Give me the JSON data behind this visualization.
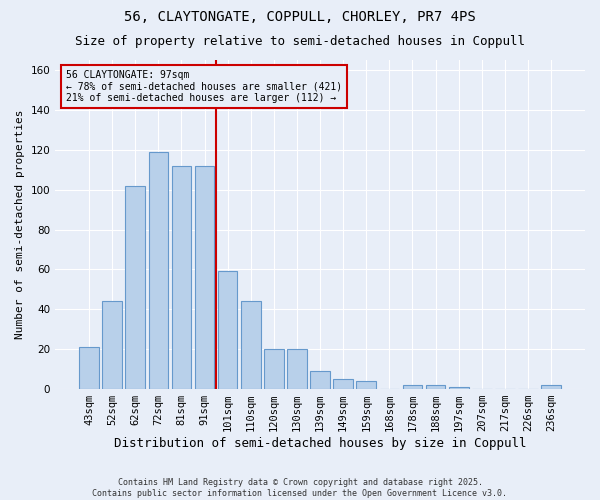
{
  "title1": "56, CLAYTONGATE, COPPULL, CHORLEY, PR7 4PS",
  "title2": "Size of property relative to semi-detached houses in Coppull",
  "xlabel": "Distribution of semi-detached houses by size in Coppull",
  "ylabel": "Number of semi-detached properties",
  "bar_labels": [
    "43sqm",
    "52sqm",
    "62sqm",
    "72sqm",
    "81sqm",
    "91sqm",
    "101sqm",
    "110sqm",
    "120sqm",
    "130sqm",
    "139sqm",
    "149sqm",
    "159sqm",
    "168sqm",
    "178sqm",
    "188sqm",
    "197sqm",
    "207sqm",
    "217sqm",
    "226sqm",
    "236sqm"
  ],
  "bar_values": [
    21,
    44,
    102,
    119,
    112,
    112,
    59,
    44,
    20,
    20,
    9,
    5,
    4,
    0,
    2,
    2,
    1,
    0,
    0,
    0,
    2
  ],
  "bar_color": "#b8d0ea",
  "bar_edge_color": "#6699cc",
  "bg_color": "#e8eef8",
  "grid_color": "#ffffff",
  "vline_color": "#cc0000",
  "vline_index": 6,
  "annotation_text": "56 CLAYTONGATE: 97sqm\n← 78% of semi-detached houses are smaller (421)\n21% of semi-detached houses are larger (112) →",
  "annotation_box_color": "#cc0000",
  "ylim": [
    0,
    165
  ],
  "yticks": [
    0,
    20,
    40,
    60,
    80,
    100,
    120,
    140,
    160
  ],
  "footer": "Contains HM Land Registry data © Crown copyright and database right 2025.\nContains public sector information licensed under the Open Government Licence v3.0.",
  "title1_fontsize": 10,
  "title2_fontsize": 9,
  "ylabel_fontsize": 8,
  "xlabel_fontsize": 9,
  "tick_fontsize": 7.5,
  "ann_fontsize": 7,
  "footer_fontsize": 6
}
